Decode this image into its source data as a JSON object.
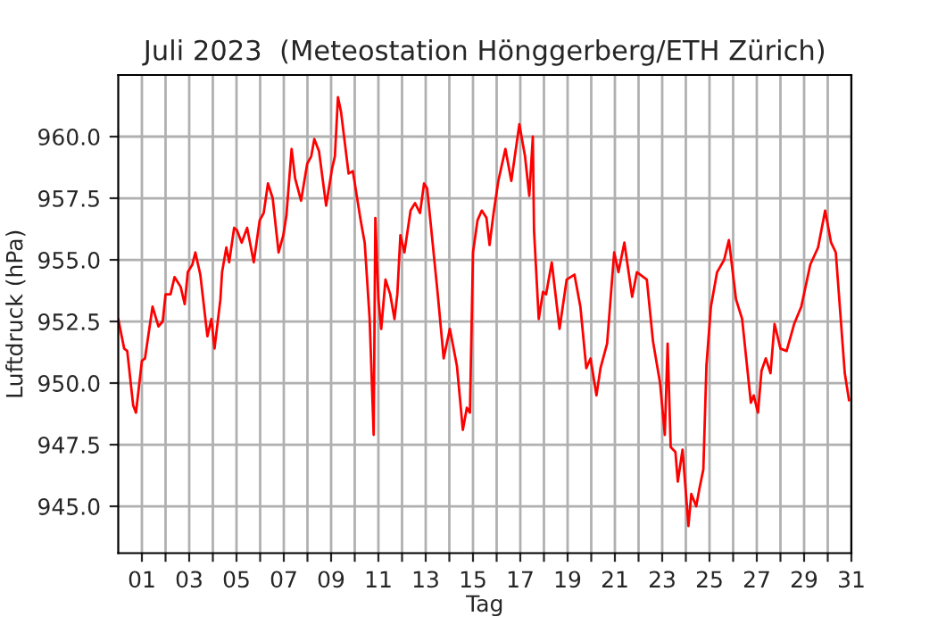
{
  "chart_data": {
    "type": "line",
    "title": "Juli 2023  (Meteostation Hönggerberg/ETH Zürich)",
    "xlabel": "Tag",
    "ylabel": "Luftdruck (hPa)",
    "xlim": [
      0,
      31
    ],
    "ylim": [
      943.1,
      962.5
    ],
    "xticks": [
      {
        "value": 1,
        "label": "01"
      },
      {
        "value": 2,
        "label": null
      },
      {
        "value": 3,
        "label": "03"
      },
      {
        "value": 4,
        "label": null
      },
      {
        "value": 5,
        "label": "05"
      },
      {
        "value": 6,
        "label": null
      },
      {
        "value": 7,
        "label": "07"
      },
      {
        "value": 8,
        "label": null
      },
      {
        "value": 9,
        "label": "09"
      },
      {
        "value": 10,
        "label": null
      },
      {
        "value": 11,
        "label": "11"
      },
      {
        "value": 12,
        "label": null
      },
      {
        "value": 13,
        "label": "13"
      },
      {
        "value": 14,
        "label": null
      },
      {
        "value": 15,
        "label": "15"
      },
      {
        "value": 16,
        "label": null
      },
      {
        "value": 17,
        "label": "17"
      },
      {
        "value": 18,
        "label": null
      },
      {
        "value": 19,
        "label": "19"
      },
      {
        "value": 20,
        "label": null
      },
      {
        "value": 21,
        "label": "21"
      },
      {
        "value": 22,
        "label": null
      },
      {
        "value": 23,
        "label": "23"
      },
      {
        "value": 24,
        "label": null
      },
      {
        "value": 25,
        "label": "25"
      },
      {
        "value": 26,
        "label": null
      },
      {
        "value": 27,
        "label": "27"
      },
      {
        "value": 28,
        "label": null
      },
      {
        "value": 29,
        "label": "29"
      },
      {
        "value": 30,
        "label": null
      },
      {
        "value": 31,
        "label": "31"
      }
    ],
    "yticks": [
      {
        "value": 945,
        "label": "945.0"
      },
      {
        "value": 947.5,
        "label": "947.5"
      },
      {
        "value": 950,
        "label": "950.0"
      },
      {
        "value": 952.5,
        "label": "952.5"
      },
      {
        "value": 955,
        "label": "955.0"
      },
      {
        "value": 957.5,
        "label": "957.5"
      },
      {
        "value": 960,
        "label": "960.0"
      }
    ],
    "grid": true,
    "legend": false,
    "marker": "none",
    "line_style": "solid",
    "series": [
      {
        "color": "#ff0000",
        "x": [
          0.0,
          0.25,
          0.38,
          0.63,
          0.75,
          1.0,
          1.13,
          1.45,
          1.7,
          1.88,
          2.0,
          2.21,
          2.38,
          2.64,
          2.81,
          2.94,
          3.13,
          3.26,
          3.47,
          3.77,
          3.94,
          4.07,
          4.32,
          4.39,
          4.57,
          4.69,
          4.9,
          5.02,
          5.22,
          5.45,
          5.73,
          5.98,
          6.15,
          6.33,
          6.53,
          6.78,
          6.98,
          7.11,
          7.33,
          7.48,
          7.73,
          7.99,
          8.16,
          8.29,
          8.49,
          8.79,
          9.04,
          9.16,
          9.29,
          9.42,
          9.74,
          9.92,
          10.25,
          10.42,
          10.63,
          10.8,
          10.87,
          11.0,
          11.12,
          11.3,
          11.5,
          11.68,
          11.8,
          11.93,
          12.1,
          12.36,
          12.55,
          12.76,
          12.93,
          13.06,
          13.26,
          13.51,
          13.76,
          14.02,
          14.32,
          14.57,
          14.74,
          14.87,
          15.0,
          15.19,
          15.37,
          15.57,
          15.7,
          15.87,
          16.07,
          16.37,
          16.62,
          16.96,
          17.2,
          17.38,
          17.53,
          17.58,
          17.78,
          17.96,
          18.09,
          18.33,
          18.66,
          18.96,
          19.29,
          19.54,
          19.79,
          19.97,
          20.22,
          20.39,
          20.67,
          20.97,
          21.15,
          21.4,
          21.73,
          21.93,
          22.35,
          22.61,
          22.91,
          23.11,
          23.23,
          23.36,
          23.56,
          23.66,
          23.86,
          24.11,
          24.23,
          24.44,
          24.57,
          24.74,
          24.87,
          25.06,
          25.32,
          25.62,
          25.82,
          26.12,
          26.38,
          26.75,
          26.87,
          27.05,
          27.2,
          27.38,
          27.58,
          27.75,
          28.0,
          28.26,
          28.58,
          28.88,
          29.26,
          29.59,
          29.89,
          30.14,
          30.34,
          30.72,
          30.9
        ],
        "values": [
          952.6,
          951.4,
          951.3,
          949.1,
          948.8,
          950.9,
          951.0,
          953.1,
          952.3,
          952.5,
          953.6,
          953.6,
          954.3,
          953.9,
          953.2,
          954.5,
          954.8,
          955.3,
          954.4,
          951.9,
          952.6,
          951.4,
          953.4,
          954.5,
          955.5,
          954.9,
          956.3,
          956.2,
          955.7,
          956.3,
          954.9,
          956.6,
          956.9,
          958.1,
          957.5,
          955.3,
          956.0,
          956.8,
          959.5,
          958.3,
          957.4,
          958.9,
          959.2,
          959.9,
          959.4,
          957.2,
          958.7,
          959.2,
          961.6,
          961.0,
          958.5,
          958.6,
          956.6,
          955.7,
          952.6,
          947.9,
          956.7,
          953.4,
          952.2,
          954.2,
          953.6,
          952.6,
          953.6,
          956.0,
          955.3,
          957.0,
          957.3,
          956.9,
          958.1,
          957.9,
          956.0,
          953.6,
          951.0,
          952.2,
          950.7,
          948.1,
          949.0,
          948.8,
          955.3,
          956.6,
          957.0,
          956.7,
          955.6,
          956.9,
          958.2,
          959.5,
          958.2,
          960.5,
          959.2,
          957.6,
          960.0,
          956.2,
          952.6,
          953.7,
          953.6,
          954.9,
          952.2,
          954.2,
          954.4,
          953.1,
          950.6,
          951.0,
          949.5,
          950.6,
          951.6,
          955.3,
          954.5,
          955.7,
          953.5,
          954.5,
          954.2,
          951.7,
          950.0,
          947.9,
          951.6,
          947.4,
          947.2,
          946.0,
          947.3,
          944.2,
          945.5,
          945.0,
          945.7,
          946.5,
          950.7,
          953.1,
          954.5,
          955.0,
          955.8,
          953.4,
          952.6,
          949.2,
          949.5,
          948.8,
          950.5,
          951.0,
          950.4,
          952.4,
          951.4,
          951.3,
          952.4,
          953.1,
          954.8,
          955.5,
          957.0,
          955.7,
          955.3,
          950.4,
          949.3
        ]
      }
    ]
  }
}
